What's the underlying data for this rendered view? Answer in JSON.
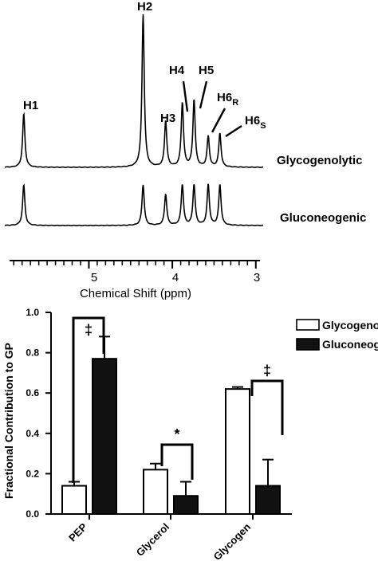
{
  "chart_data": [
    {
      "type": "line",
      "xlabel": "Chemical Shift (ppm)",
      "xlim": [
        5.95,
        2.95
      ],
      "x_ticks": [
        "5",
        "4",
        "3"
      ],
      "x_tick_values": [
        5,
        4,
        3
      ],
      "peaks": [
        {
          "name": "H1",
          "sub": "",
          "x": 5.78
        },
        {
          "name": "H2",
          "sub": "",
          "x": 4.35
        },
        {
          "name": "H3",
          "sub": "",
          "x": 4.08
        },
        {
          "name": "H4",
          "sub": "",
          "x": 3.88
        },
        {
          "name": "H5",
          "sub": "",
          "x": 3.74
        },
        {
          "name": "H6",
          "sub": "R",
          "x": 3.57
        },
        {
          "name": "H6",
          "sub": "S",
          "x": 3.43
        }
      ],
      "series": [
        {
          "name": "Glycogenolytic",
          "heights": [
            0.35,
            1.0,
            0.3,
            0.42,
            0.44,
            0.2,
            0.22
          ]
        },
        {
          "name": "Gluconeogenic",
          "heights": [
            0.85,
            0.85,
            0.65,
            0.85,
            0.85,
            0.85,
            0.85
          ]
        }
      ]
    },
    {
      "type": "bar",
      "categories": [
        "PEP",
        "Glycerol",
        "Glycogen"
      ],
      "ylabel": "Fractional Contribution to GP",
      "ylim": [
        0,
        1.0
      ],
      "y_ticks": [
        "0.0",
        "0.2",
        "0.4",
        "0.6",
        "0.8",
        "1.0"
      ],
      "y_tick_values": [
        0,
        0.2,
        0.4,
        0.6,
        0.8,
        1.0
      ],
      "legend": "top-right",
      "series": [
        {
          "name": "Glycogenolytic",
          "values": [
            0.14,
            0.22,
            0.62
          ],
          "errors": [
            0.02,
            0.03,
            0.01
          ],
          "color": "#ffffff"
        },
        {
          "name": "Gluconeogenic",
          "values": [
            0.77,
            0.09,
            0.14
          ],
          "errors": [
            0.11,
            0.07,
            0.13
          ],
          "color": "#111111"
        }
      ],
      "significance": [
        "‡",
        "*",
        "‡"
      ]
    }
  ]
}
